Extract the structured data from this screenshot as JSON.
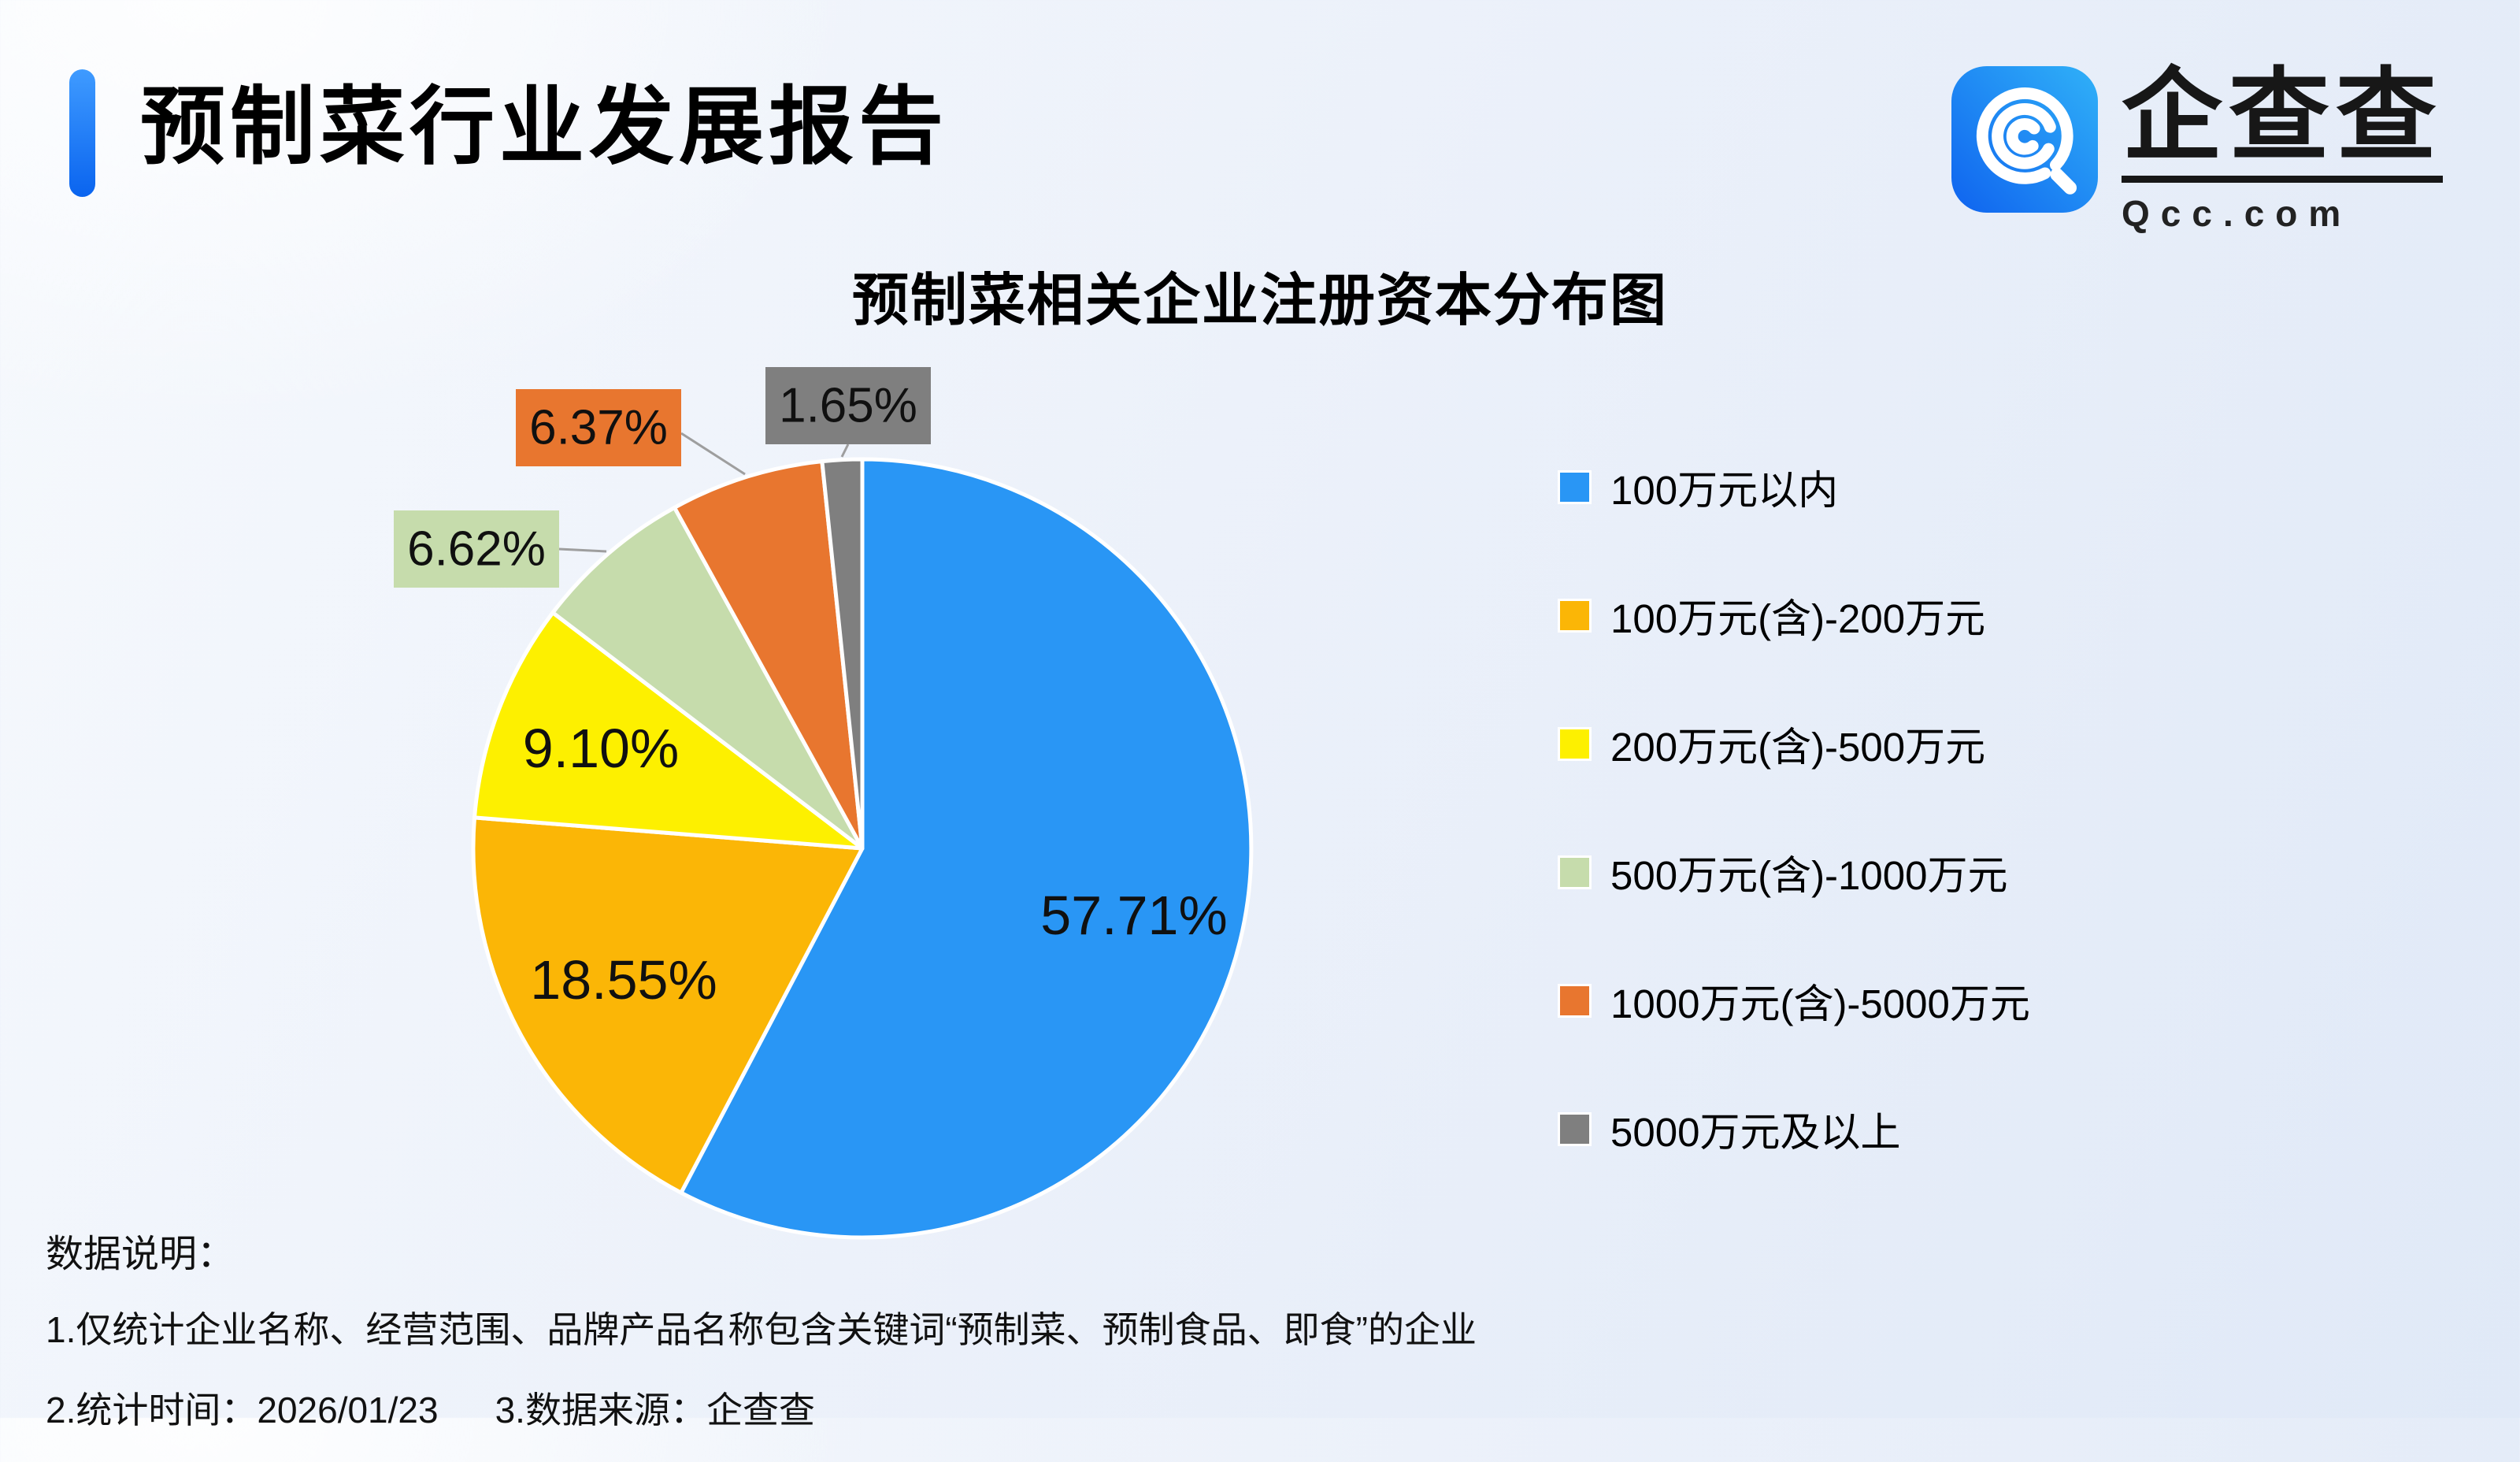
{
  "header": {
    "title": "预制菜行业发展报告"
  },
  "logo": {
    "brand": "企查查",
    "domain": "Qcc.com"
  },
  "chart_data": {
    "type": "pie",
    "title": "预制菜相关企业注册资本分布图",
    "start_angle": "12-oclock",
    "direction": "clockwise",
    "legend_position": "right",
    "segments": [
      {
        "label": "100万元以内",
        "value": 57.71,
        "display": "57.71%",
        "color": "#2996F5",
        "label_placement": "inside"
      },
      {
        "label": "100万元(含)-200万元",
        "value": 18.55,
        "display": "18.55%",
        "color": "#FBB606",
        "label_placement": "inside"
      },
      {
        "label": "200万元(含)-500万元",
        "value": 9.1,
        "display": "9.10%",
        "color": "#FDF000",
        "label_placement": "inside"
      },
      {
        "label": "500万元(含)-1000万元",
        "value": 6.62,
        "display": "6.62%",
        "color": "#C6DCAC",
        "label_placement": "outside"
      },
      {
        "label": "1000万元(含)-5000万元",
        "value": 6.37,
        "display": "6.37%",
        "color": "#E8762F",
        "label_placement": "outside"
      },
      {
        "label": "5000万元及以上",
        "value": 1.65,
        "display": "1.65%",
        "color": "#7F7F7F",
        "label_placement": "outside"
      }
    ]
  },
  "notes": {
    "heading": "数据说明：",
    "line1": "1.仅统计企业名称、经营范围、品牌产品名称包含关键词“预制菜、预制食品、即食”的企业",
    "line2a": "2.统计时间：2026/01/23",
    "line2b": "3.数据来源：企查查"
  }
}
